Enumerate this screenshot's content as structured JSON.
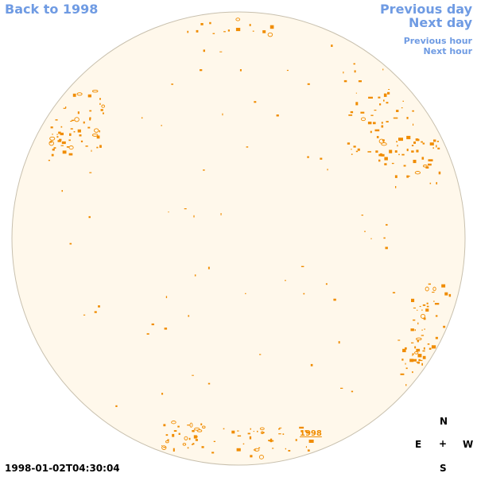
{
  "nav": {
    "back_label": "Back to 1998",
    "prev_day_label": "Previous day",
    "next_day_label": "Next day",
    "prev_hour_label": "Previous hour",
    "next_hour_label": "Next hour"
  },
  "disk": {
    "marker_label": "1998",
    "fill_color": "#fff8eb",
    "stroke_color": "#c8c0ae",
    "feature_color": "#f08c00"
  },
  "compass": {
    "north": "N",
    "east": "E",
    "center": "+",
    "west": "W",
    "south": "S"
  },
  "timestamp": "1998-01-02T04:30:04",
  "colors": {
    "link": "#6f9be3",
    "text": "#000000"
  }
}
